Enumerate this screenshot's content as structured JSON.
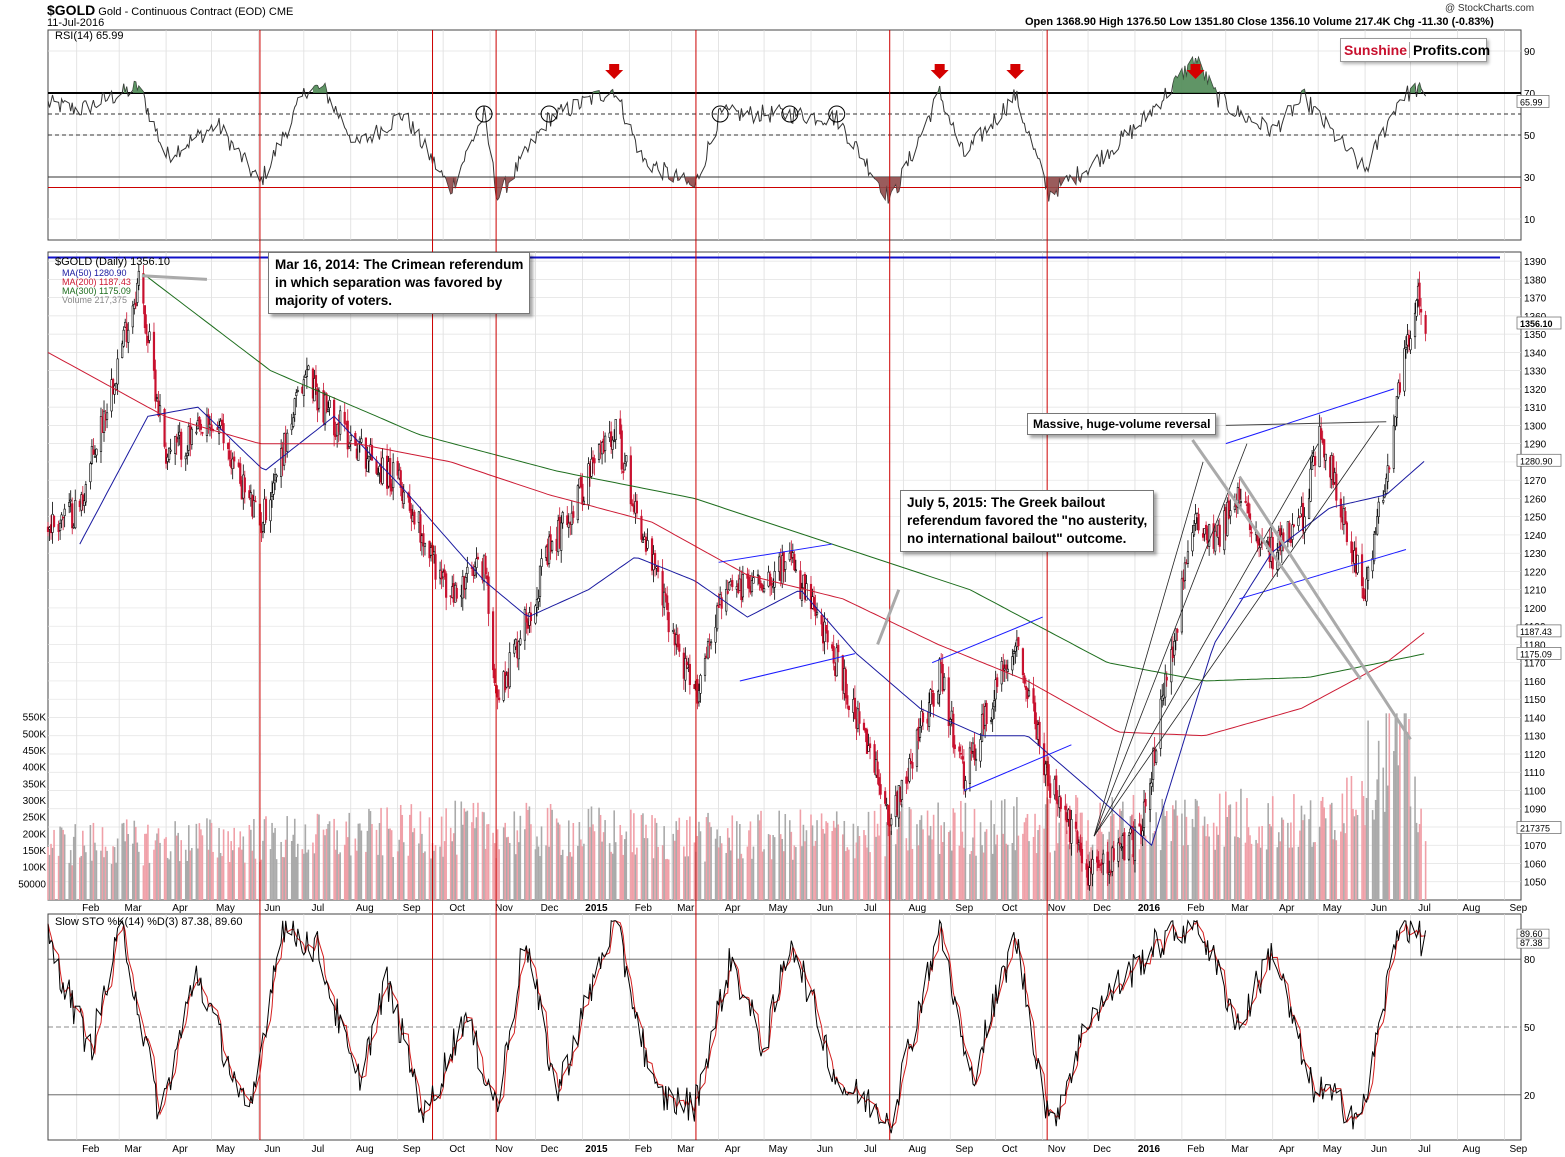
{
  "header": {
    "symbol": "$GOLD",
    "name": "Gold - Continuous Contract (EOD)",
    "exchange": "CME",
    "date": "11-Jul-2016",
    "credit": "@ StockCharts.com",
    "quote": "Open 1368.90 High 1376.50 Low 1351.80 Close 1356.10 Volume 217.4K Chg -11.30 (-0.83%)"
  },
  "logo": {
    "part1": "Sunshine",
    "part2": "Profits.com"
  },
  "callouts": {
    "crimea": [
      "Mar 16, 2014: The Crimean referendum",
      "in which separation was favored by",
      "majority of voters."
    ],
    "greek": [
      "July 5, 2015: The Greek bailout",
      "referendum favored the \"no austerity,",
      "no international bailout\" outcome."
    ],
    "reversal": "Massive, huge-volume reversal"
  },
  "chart_data": [
    {
      "type": "line",
      "panel": "RSI",
      "title": "RSI(14) 65.99",
      "ylim": [
        0,
        100
      ],
      "yticks": [
        10,
        30,
        50,
        70,
        90
      ],
      "last_value_label": "65.99",
      "levels": [
        70,
        60,
        50,
        30,
        25
      ],
      "shading": {
        "overbought_fill": "#4f8a55",
        "oversold_fill": "#8f4a4a",
        "line_color": "#333333"
      },
      "sell_arrows_near": [
        "2015-01-22",
        "2015-08-25",
        "2015-10-14",
        "2016-02-10"
      ],
      "circled_points_near": [
        "2014-10-28",
        "2014-12-10",
        "2015-04-02",
        "2015-05-18",
        "2015-06-18"
      ],
      "x": [
        "2014-01-13",
        "2014-02-03",
        "2014-03-14",
        "2014-04-01",
        "2014-05-05",
        "2014-06-02",
        "2014-07-03",
        "2014-07-14",
        "2014-08-05",
        "2014-09-05",
        "2014-10-06",
        "2014-10-28",
        "2014-11-06",
        "2014-12-10",
        "2015-01-22",
        "2015-02-10",
        "2015-03-16",
        "2015-04-02",
        "2015-05-18",
        "2015-06-18",
        "2015-07-24",
        "2015-08-25",
        "2015-09-10",
        "2015-10-14",
        "2015-11-05",
        "2015-12-02",
        "2016-01-04",
        "2016-02-10",
        "2016-02-24",
        "2016-03-10",
        "2016-04-01",
        "2016-04-22",
        "2016-05-02",
        "2016-06-01",
        "2016-06-24",
        "2016-07-06",
        "2016-07-11"
      ],
      "values": [
        65,
        62,
        73,
        40,
        55,
        27,
        72,
        72,
        45,
        60,
        24,
        60,
        20,
        58,
        72,
        38,
        25,
        60,
        60,
        58,
        19,
        70,
        40,
        69,
        22,
        35,
        55,
        86,
        68,
        60,
        52,
        68,
        58,
        33,
        68,
        72,
        66
      ]
    },
    {
      "type": "candlestick",
      "panel": "price",
      "title": "$GOLD (Daily) 1356.10",
      "ylim": [
        1040,
        1395
      ],
      "yticks": [
        1050,
        1060,
        1070,
        1080,
        1090,
        1100,
        1110,
        1120,
        1130,
        1140,
        1150,
        1160,
        1170,
        1180,
        1190,
        1200,
        1210,
        1220,
        1230,
        1240,
        1250,
        1260,
        1270,
        1280,
        1290,
        1300,
        1310,
        1320,
        1330,
        1340,
        1350,
        1360,
        1370,
        1380,
        1390
      ],
      "resistance_level": 1392,
      "legend": [
        {
          "label": "MA(50) 1280.90",
          "color": "#1a1aa0"
        },
        {
          "label": "MA(200) 1187.43",
          "color": "#cc1a33"
        },
        {
          "label": "MA(300) 1175.09",
          "color": "#1e6e1e"
        },
        {
          "label": "Volume 217,375",
          "color": "#888888"
        }
      ],
      "right_labels": [
        {
          "value": 1356.1,
          "label": "1356.10"
        },
        {
          "value": 1280.9,
          "label": "1280.90"
        },
        {
          "value": 1187.43,
          "label": "1187.43"
        },
        {
          "value": 1175.09,
          "label": "1175.09"
        }
      ],
      "x": [
        "2014-01-13",
        "2014-02-03",
        "2014-03-14",
        "2014-04-01",
        "2014-05-05",
        "2014-06-02",
        "2014-07-03",
        "2014-07-14",
        "2014-08-05",
        "2014-09-05",
        "2014-10-06",
        "2014-10-28",
        "2014-11-06",
        "2014-12-10",
        "2015-01-22",
        "2015-02-10",
        "2015-03-16",
        "2015-04-02",
        "2015-05-18",
        "2015-06-18",
        "2015-07-24",
        "2015-08-25",
        "2015-09-10",
        "2015-10-14",
        "2015-11-05",
        "2015-12-02",
        "2016-01-04",
        "2016-02-10",
        "2016-02-24",
        "2016-03-10",
        "2016-04-01",
        "2016-04-22",
        "2016-05-02",
        "2016-06-01",
        "2016-06-24",
        "2016-07-06",
        "2016-07-11"
      ],
      "close": [
        1245,
        1255,
        1380,
        1285,
        1300,
        1245,
        1330,
        1310,
        1290,
        1265,
        1205,
        1225,
        1150,
        1230,
        1300,
        1240,
        1150,
        1205,
        1225,
        1170,
        1085,
        1165,
        1105,
        1185,
        1105,
        1055,
        1075,
        1250,
        1240,
        1260,
        1230,
        1250,
        1300,
        1205,
        1320,
        1375,
        1356
      ]
    },
    {
      "type": "line",
      "panel": "price-moving-averages",
      "series": [
        {
          "name": "MA(50) 1280.90",
          "color": "#1a1aa0",
          "x": [
            "2014-02-03",
            "2014-03-20",
            "2014-04-22",
            "2014-06-05",
            "2014-07-21",
            "2014-09-05",
            "2014-10-28",
            "2014-11-26",
            "2015-01-05",
            "2015-02-05",
            "2015-03-16",
            "2015-04-20",
            "2015-05-25",
            "2015-07-01",
            "2015-08-12",
            "2015-09-22",
            "2015-10-22",
            "2015-12-03",
            "2016-01-12",
            "2016-02-22",
            "2016-03-31",
            "2016-05-09",
            "2016-06-15",
            "2016-07-11"
          ],
          "values": [
            1235,
            1305,
            1310,
            1275,
            1305,
            1265,
            1215,
            1195,
            1210,
            1228,
            1215,
            1195,
            1210,
            1175,
            1145,
            1130,
            1130,
            1100,
            1070,
            1180,
            1230,
            1255,
            1262,
            1281
          ]
        },
        {
          "name": "MA(200) 1187.43",
          "color": "#cc1a33",
          "x": [
            "2014-01-13",
            "2014-03-31",
            "2014-06-02",
            "2014-08-05",
            "2014-10-06",
            "2014-12-10",
            "2015-02-16",
            "2015-04-20",
            "2015-06-22",
            "2015-08-24",
            "2015-10-22",
            "2015-12-21",
            "2016-02-16",
            "2016-04-20",
            "2016-06-15",
            "2016-07-11"
          ],
          "values": [
            1340,
            1305,
            1290,
            1290,
            1280,
            1262,
            1247,
            1218,
            1205,
            1180,
            1160,
            1132,
            1130,
            1145,
            1170,
            1187
          ]
        },
        {
          "name": "MA(300) 1175.09",
          "color": "#1e6e1e",
          "x": [
            "2014-03-17",
            "2014-06-09",
            "2014-09-15",
            "2014-12-15",
            "2015-03-16",
            "2015-06-15",
            "2015-09-14",
            "2015-12-14",
            "2016-02-16",
            "2016-04-25",
            "2016-07-11"
          ],
          "values": [
            1383,
            1330,
            1295,
            1275,
            1260,
            1235,
            1210,
            1170,
            1160,
            1162,
            1175
          ]
        }
      ]
    },
    {
      "type": "bar",
      "panel": "volume",
      "title": "Volume 217,375",
      "ylim": [
        0,
        600000
      ],
      "yticks": [
        50000,
        100000,
        150000,
        200000,
        250000,
        300000,
        350000,
        400000,
        450000,
        500000,
        550000
      ],
      "ytick_labels": [
        "50000",
        "100K",
        "150K",
        "200K",
        "250K",
        "300K",
        "350K",
        "400K",
        "450K",
        "500K",
        "550K"
      ],
      "last_value_label": "217375",
      "x": [
        "2014-01-13",
        "2014-04-01",
        "2014-07-03",
        "2014-10-06",
        "2015-01-05",
        "2015-04-01",
        "2015-07-01",
        "2015-10-01",
        "2016-01-04",
        "2016-03-01",
        "2016-05-02",
        "2016-06-24",
        "2016-07-11"
      ],
      "values": [
        180000,
        190000,
        200000,
        230000,
        220000,
        200000,
        220000,
        240000,
        250000,
        270000,
        240000,
        530000,
        217375
      ]
    },
    {
      "type": "line",
      "panel": "stochastic",
      "title": "Slow STO %K(14) %D(3) 87.38, 89.60",
      "ylim": [
        0,
        100
      ],
      "yticks": [
        20,
        50,
        80
      ],
      "last_value_labels": [
        "89.60",
        "87.38"
      ],
      "series": [
        {
          "name": "%K",
          "color": "#000000"
        },
        {
          "name": "%D",
          "color": "#d42020"
        }
      ],
      "x": [
        "2014-01-13",
        "2014-02-10",
        "2014-03-03",
        "2014-03-28",
        "2014-04-21",
        "2014-05-26",
        "2014-06-16",
        "2014-07-10",
        "2014-08-05",
        "2014-08-25",
        "2014-09-19",
        "2014-10-15",
        "2014-11-06",
        "2014-11-24",
        "2014-12-15",
        "2015-01-22",
        "2015-02-18",
        "2015-03-16",
        "2015-04-09",
        "2015-05-01",
        "2015-05-19",
        "2015-06-19",
        "2015-07-24",
        "2015-08-25",
        "2015-09-14",
        "2015-10-14",
        "2015-11-06",
        "2015-12-02",
        "2016-01-13",
        "2016-02-11",
        "2016-03-10",
        "2016-04-01",
        "2016-04-25",
        "2016-05-30",
        "2016-06-24",
        "2016-07-11"
      ],
      "k": [
        88,
        40,
        95,
        10,
        75,
        8,
        95,
        85,
        25,
        70,
        10,
        55,
        15,
        90,
        20,
        98,
        20,
        15,
        80,
        40,
        90,
        25,
        10,
        95,
        25,
        90,
        5,
        55,
        85,
        98,
        50,
        85,
        25,
        10,
        98,
        87.38
      ]
    }
  ],
  "x_axis": {
    "labels": [
      {
        "date": "2014-02-01",
        "text": "Feb"
      },
      {
        "date": "2014-03-01",
        "text": "Mar"
      },
      {
        "date": "2014-04-01",
        "text": "Apr"
      },
      {
        "date": "2014-05-01",
        "text": "May"
      },
      {
        "date": "2014-06-01",
        "text": "Jun"
      },
      {
        "date": "2014-07-01",
        "text": "Jul"
      },
      {
        "date": "2014-08-01",
        "text": "Aug"
      },
      {
        "date": "2014-09-01",
        "text": "Sep"
      },
      {
        "date": "2014-10-01",
        "text": "Oct"
      },
      {
        "date": "2014-11-01",
        "text": "Nov"
      },
      {
        "date": "2014-12-01",
        "text": "Dec"
      },
      {
        "date": "2015-01-01",
        "text": "2015"
      },
      {
        "date": "2015-02-01",
        "text": "Feb"
      },
      {
        "date": "2015-03-01",
        "text": "Mar"
      },
      {
        "date": "2015-04-01",
        "text": "Apr"
      },
      {
        "date": "2015-05-01",
        "text": "May"
      },
      {
        "date": "2015-06-01",
        "text": "Jun"
      },
      {
        "date": "2015-07-01",
        "text": "Jul"
      },
      {
        "date": "2015-08-01",
        "text": "Aug"
      },
      {
        "date": "2015-09-01",
        "text": "Sep"
      },
      {
        "date": "2015-10-01",
        "text": "Oct"
      },
      {
        "date": "2015-11-01",
        "text": "Nov"
      },
      {
        "date": "2015-12-01",
        "text": "Dec"
      },
      {
        "date": "2016-01-01",
        "text": "2016"
      },
      {
        "date": "2016-02-01",
        "text": "Feb"
      },
      {
        "date": "2016-03-01",
        "text": "Mar"
      },
      {
        "date": "2016-04-01",
        "text": "Apr"
      },
      {
        "date": "2016-05-01",
        "text": "May"
      },
      {
        "date": "2016-06-01",
        "text": "Jun"
      },
      {
        "date": "2016-07-01",
        "text": "Jul"
      },
      {
        "date": "2016-08-01",
        "text": "Aug"
      },
      {
        "date": "2016-09-01",
        "text": "Sep"
      }
    ],
    "range": [
      "2014-01-13",
      "2016-09-12"
    ]
  },
  "annotations": {
    "vertical_markers": [
      "2014-06-02",
      "2014-09-24",
      "2014-11-05",
      "2015-03-17",
      "2015-07-23",
      "2015-11-04"
    ],
    "marker_color": "#cc0000",
    "trend_color": "#1a1aff"
  }
}
